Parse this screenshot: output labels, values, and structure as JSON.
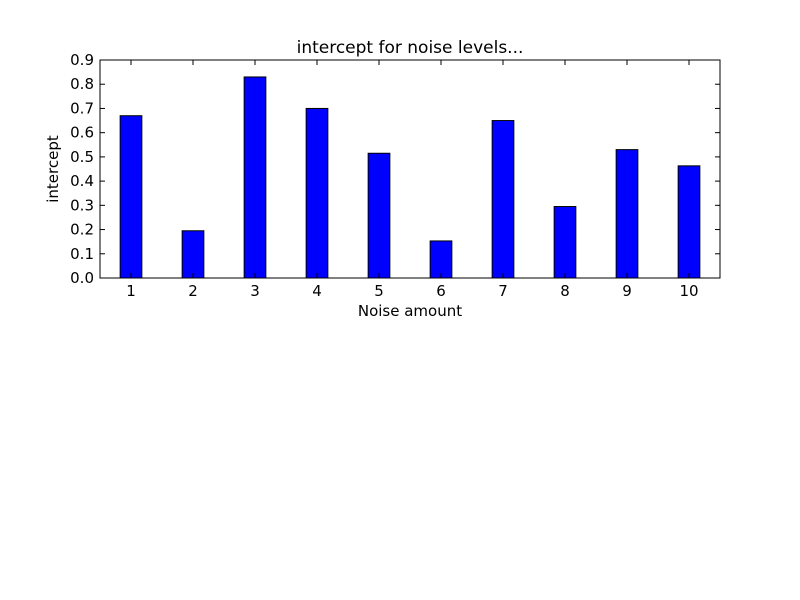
{
  "chart_data": {
    "type": "bar",
    "title": "intercept for noise levels...",
    "xlabel": "Noise amount",
    "ylabel": "intercept",
    "categories": [
      "1",
      "2",
      "3",
      "4",
      "5",
      "6",
      "7",
      "8",
      "9",
      "10"
    ],
    "values": [
      0.67,
      0.195,
      0.83,
      0.7,
      0.515,
      0.153,
      0.65,
      0.295,
      0.53,
      0.463
    ],
    "ylim": [
      0,
      0.9
    ],
    "yticks": [
      "0.0",
      "0.1",
      "0.2",
      "0.3",
      "0.4",
      "0.5",
      "0.6",
      "0.7",
      "0.8",
      "0.9"
    ],
    "grid": false,
    "bar_color": "#0000ff",
    "edge_color": "#000000"
  }
}
